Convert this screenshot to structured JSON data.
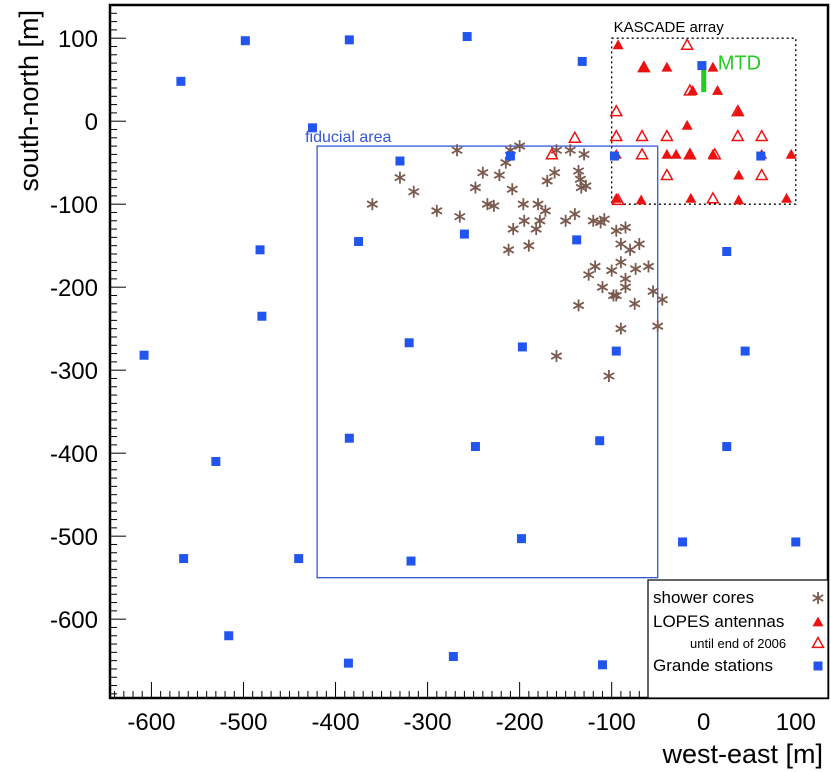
{
  "chart_data": {
    "type": "scatter",
    "xlabel": "west-east [m]",
    "ylabel": "south-north [m]",
    "xlim": [
      -645,
      135
    ],
    "ylim": [
      -695,
      140
    ],
    "xticks": [
      -600,
      -500,
      -400,
      -300,
      -200,
      -100,
      0,
      100
    ],
    "yticks": [
      100,
      0,
      -100,
      -200,
      -300,
      -400,
      -500,
      -600
    ],
    "colors": {
      "grande": "#2255ee",
      "lopes": "#ee1111",
      "cores": "#7a5a4e",
      "fiducial": "#3355dd",
      "mtd": "#22cc22"
    },
    "series": [
      {
        "name": "shower cores",
        "marker": "asterisk",
        "points": [
          [
            -210,
            -35
          ],
          [
            -200,
            -30
          ],
          [
            -268,
            -35
          ],
          [
            -240,
            -62
          ],
          [
            -160,
            -35
          ],
          [
            -145,
            -35
          ],
          [
            -130,
            -40
          ],
          [
            -330,
            -68
          ],
          [
            -315,
            -85
          ],
          [
            -360,
            -100
          ],
          [
            -290,
            -108
          ],
          [
            -265,
            -115
          ],
          [
            -248,
            -80
          ],
          [
            -235,
            -100
          ],
          [
            -228,
            -102
          ],
          [
            -215,
            -50
          ],
          [
            -222,
            -65
          ],
          [
            -208,
            -82
          ],
          [
            -196,
            -100
          ],
          [
            -195,
            -120
          ],
          [
            -180,
            -100
          ],
          [
            -178,
            -120
          ],
          [
            -170,
            -72
          ],
          [
            -162,
            -62
          ],
          [
            -150,
            -120
          ],
          [
            -140,
            -112
          ],
          [
            -136,
            -60
          ],
          [
            -134,
            -70
          ],
          [
            -133,
            -80
          ],
          [
            -128,
            -78
          ],
          [
            -120,
            -120
          ],
          [
            -112,
            -122
          ],
          [
            -108,
            -118
          ],
          [
            -95,
            -132
          ],
          [
            -85,
            -128
          ],
          [
            -190,
            -150
          ],
          [
            -207,
            -130
          ],
          [
            -212,
            -155
          ],
          [
            -182,
            -130
          ],
          [
            -172,
            -108
          ],
          [
            -118,
            -175
          ],
          [
            -125,
            -185
          ],
          [
            -110,
            -200
          ],
          [
            -100,
            -180
          ],
          [
            -90,
            -148
          ],
          [
            -80,
            -155
          ],
          [
            -70,
            -148
          ],
          [
            -74,
            -178
          ],
          [
            -60,
            -175
          ],
          [
            -90,
            -170
          ],
          [
            -85,
            -190
          ],
          [
            -95,
            -210
          ],
          [
            -85,
            -200
          ],
          [
            -75,
            -220
          ],
          [
            -55,
            -205
          ],
          [
            -45,
            -215
          ],
          [
            -98,
            -210
          ],
          [
            -90,
            -250
          ],
          [
            -50,
            -247
          ],
          [
            -160,
            -283
          ],
          [
            -103,
            -307
          ],
          [
            -136,
            -222
          ]
        ]
      },
      {
        "name": "LOPES antennas",
        "marker": "triangle-filled",
        "points": [
          [
            -93,
            92
          ],
          [
            -65,
            65
          ],
          [
            -40,
            65
          ],
          [
            -18,
            -5
          ],
          [
            -12,
            37
          ],
          [
            10,
            65
          ],
          [
            -95,
            -40
          ],
          [
            -95,
            -93
          ],
          [
            -40,
            -40
          ],
          [
            -15,
            -40
          ],
          [
            10,
            -40
          ],
          [
            38,
            -65
          ],
          [
            38,
            -95
          ],
          [
            38,
            12
          ],
          [
            15,
            37
          ],
          [
            -68,
            -95
          ],
          [
            -30,
            -40
          ],
          [
            -14,
            -93
          ],
          [
            63,
            -40
          ],
          [
            90,
            -93
          ],
          [
            95,
            -40
          ]
        ]
      },
      {
        "name": "until end of 2006",
        "marker": "triangle-open",
        "points": [
          [
            -165,
            -40
          ],
          [
            -140,
            -20
          ],
          [
            -65,
            65
          ],
          [
            -95,
            12
          ],
          [
            -95,
            -18
          ],
          [
            -67,
            -18
          ],
          [
            -40,
            -18
          ],
          [
            -18,
            92
          ],
          [
            -15,
            37
          ],
          [
            37,
            -18
          ],
          [
            37,
            12
          ],
          [
            63,
            -18
          ],
          [
            -40,
            -65
          ],
          [
            -15,
            -40
          ],
          [
            12,
            -40
          ],
          [
            63,
            -65
          ],
          [
            -93,
            -95
          ],
          [
            10,
            -93
          ],
          [
            -67,
            -40
          ]
        ]
      },
      {
        "name": "Grande stations",
        "marker": "square-filled",
        "points": [
          [
            -498,
            97
          ],
          [
            -385,
            98
          ],
          [
            -257,
            102
          ],
          [
            -132,
            72
          ],
          [
            -2,
            67
          ],
          [
            -568,
            48
          ],
          [
            -425,
            -8
          ],
          [
            -330,
            -48
          ],
          [
            -210,
            -42
          ],
          [
            -97,
            -42
          ],
          [
            62,
            -42
          ],
          [
            -375,
            -145
          ],
          [
            -260,
            -136
          ],
          [
            -138,
            -143
          ],
          [
            25,
            -157
          ],
          [
            -482,
            -155
          ],
          [
            -480,
            -235
          ],
          [
            -320,
            -267
          ],
          [
            -197,
            -272
          ],
          [
            -95,
            -277
          ],
          [
            45,
            -277
          ],
          [
            -608,
            -282
          ],
          [
            -385,
            -382
          ],
          [
            -248,
            -392
          ],
          [
            -113,
            -385
          ],
          [
            25,
            -392
          ],
          [
            -530,
            -410
          ],
          [
            -565,
            -527
          ],
          [
            -440,
            -527
          ],
          [
            -318,
            -530
          ],
          [
            -198,
            -503
          ],
          [
            -23,
            -507
          ],
          [
            100,
            -507
          ],
          [
            -516,
            -620
          ],
          [
            -386,
            -653
          ],
          [
            -272,
            -645
          ],
          [
            -110,
            -655
          ]
        ]
      }
    ],
    "annotations": {
      "kascade_label": "KASCADE array",
      "fiducial_label": "fiducial area",
      "mtd_label": "MTD"
    },
    "regions": {
      "kascade_box": {
        "x": [
          -100,
          100
        ],
        "y": [
          -100,
          100
        ]
      },
      "fiducial_box": {
        "x": [
          -420,
          -50
        ],
        "y": [
          -550,
          -30
        ]
      },
      "mtd_bar": {
        "x": 0,
        "y": [
          35,
          72
        ]
      }
    },
    "legend": {
      "position": "bottom-right",
      "entries": [
        "shower cores",
        "LOPES antennas",
        "until end of 2006",
        "Grande stations"
      ]
    }
  }
}
